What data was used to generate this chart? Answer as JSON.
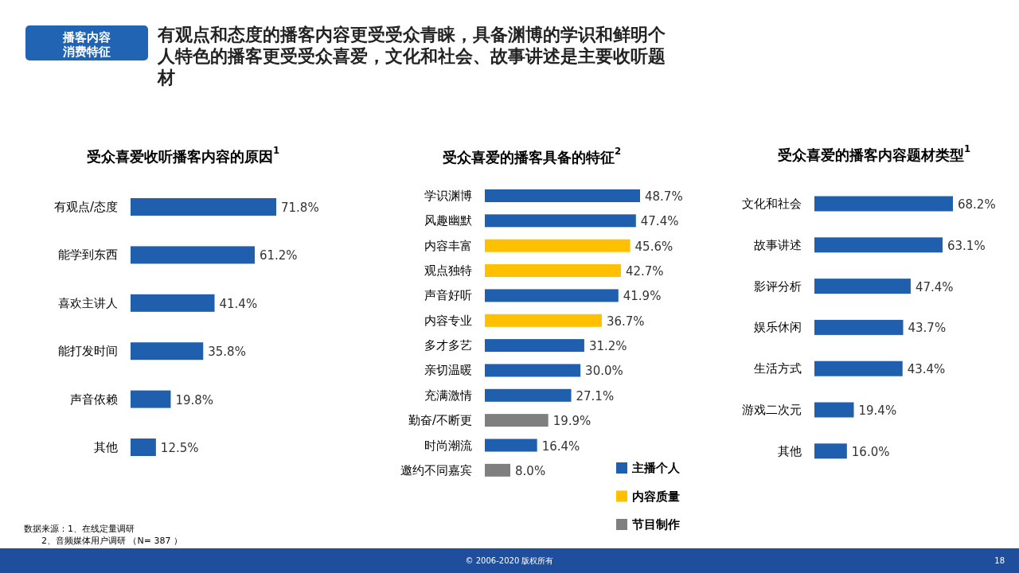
{
  "chart_data": [
    {
      "type": "other",
      "title": "有观点和态度的播客内容更受受众青睐，具备渊博的学识和鲜明个人特色的播客更受受众喜爱，文化和社会、故事讲述是主要收听题材",
      "subtitle": "播客内容消费特征",
      "annotations": [
        "数据来源：1、在线定量调研",
        "2、音频媒体用户调研 （N= 387 ）",
        "© 2006-2020 版权所有",
        "18"
      ]
    },
    {
      "type": "bar",
      "orientation": "horizontal",
      "title": "受众喜爱收听播客内容的原因$^{1}$",
      "categories": [
        "有观点/态度",
        "能学到东西",
        "喜欢主讲人",
        "能打发时间",
        "声音依赖",
        "其他"
      ],
      "values": [
        71.8,
        61.2,
        41.4,
        35.8,
        19.8,
        12.5
      ],
      "color": "#1f5fad",
      "value_labels": [
        "71.8%",
        "61.2%",
        "41.4%",
        "35.8%",
        "19.8%",
        "12.5%"
      ]
    },
    {
      "type": "bar",
      "orientation": "horizontal",
      "legend": "bottom right",
      "title": "受众喜爱的播客具备的特征$^{2}$",
      "categories": [
        "学识渊博",
        "风趣幽默",
        "内容丰富",
        "观点独特",
        "声音好听",
        "内容专业",
        "多才多艺",
        "亲切温暖",
        "充满激情",
        "勤奋/不断更",
        "时尚潮流",
        "邀约不同嘉宾"
      ],
      "series": [
        {
          "name": "主播个人",
          "color": "#1f5fad",
          "values": [
            48.7,
            47.4,
            null,
            null,
            41.9,
            null,
            31.2,
            30.0,
            27.1,
            null,
            16.4,
            null
          ],
          "value_labels": [
            "48.7%",
            "47.4%",
            null,
            null,
            "41.9%",
            null,
            "31.2%",
            "30.0%",
            "27.1%",
            null,
            "16.4%",
            null
          ]
        },
        {
          "name": "内容质量",
          "color": "#ffc000",
          "values": [
            null,
            null,
            45.6,
            42.7,
            null,
            36.7,
            null,
            null,
            null,
            null,
            null,
            null
          ],
          "value_labels": [
            null,
            null,
            "45.6%",
            "42.7%",
            null,
            "36.7%",
            null,
            null,
            null,
            null,
            null,
            null
          ]
        },
        {
          "name": "节目制作",
          "color": "#7f7f7f",
          "values": [
            null,
            null,
            null,
            null,
            null,
            null,
            null,
            null,
            null,
            19.9,
            null,
            8.0
          ],
          "value_labels": [
            null,
            null,
            null,
            null,
            null,
            null,
            null,
            null,
            null,
            "19.9%",
            null,
            "8.0%"
          ]
        }
      ]
    },
    {
      "type": "bar",
      "orientation": "horizontal",
      "title": "受众喜爱的播客内容题材类型$^{1}$",
      "categories": [
        "文化和社会",
        "故事讲述",
        "影评分析",
        "娱乐休闲",
        "生活方式",
        "游戏二次元",
        "其他"
      ],
      "values": [
        68.2,
        63.1,
        47.4,
        43.7,
        43.4,
        19.4,
        16.0
      ],
      "color": "#1f5fad",
      "value_labels": [
        "68.2%",
        "63.1%",
        "47.4%",
        "43.7%",
        "43.4%",
        "19.4%",
        "16.0%"
      ]
    }
  ]
}
